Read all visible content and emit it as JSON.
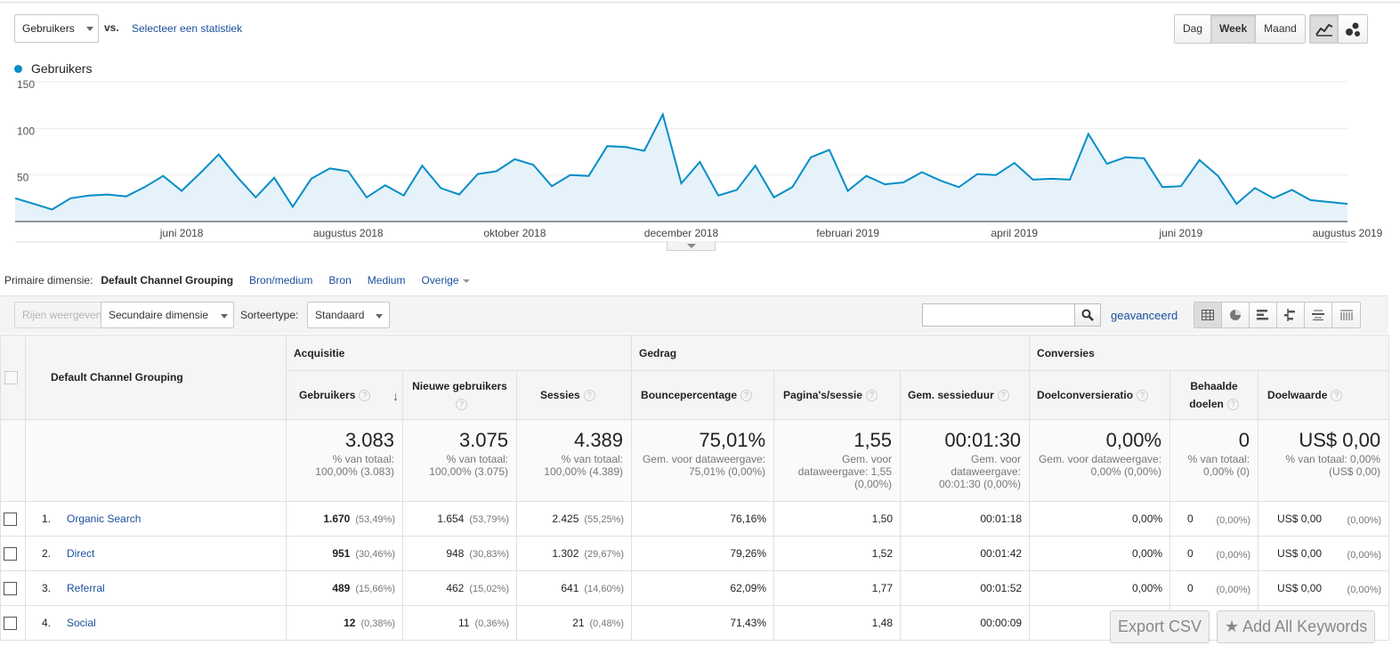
{
  "controls": {
    "metric_select": "Gebruikers",
    "vs": "vs.",
    "select_stat": "Selecteer een statistiek",
    "periods": [
      "Dag",
      "Week",
      "Maand"
    ],
    "active_period": "Week"
  },
  "chart_data": {
    "type": "area",
    "series": [
      {
        "name": "Gebruikers",
        "color": "#058dc7",
        "values": [
          25,
          19,
          13,
          25,
          28,
          29,
          27,
          37,
          49,
          33,
          52,
          72,
          48,
          26,
          47,
          16,
          46,
          57,
          54,
          26,
          39,
          28,
          60,
          36,
          29,
          51,
          54,
          67,
          61,
          38,
          50,
          49,
          81,
          80,
          76,
          115,
          41,
          64,
          28,
          34,
          60,
          26,
          37,
          69,
          77,
          33,
          49,
          40,
          42,
          53,
          44,
          37,
          51,
          50,
          63,
          45,
          46,
          45,
          94,
          62,
          69,
          68,
          37,
          38,
          66,
          49,
          19,
          36,
          25,
          34,
          23,
          21,
          19
        ]
      }
    ],
    "yticks": [
      50,
      100,
      150
    ],
    "ylim": [
      0,
      150
    ],
    "xtick_labels": [
      "juni 2018",
      "augustus 2018",
      "oktober 2018",
      "december 2018",
      "februari 2019",
      "april 2019",
      "juni 2019",
      "augustus 2019"
    ],
    "xtick_index": [
      9,
      18,
      27,
      36,
      45,
      54,
      63,
      72
    ],
    "grid": true
  },
  "primary": {
    "label": "Primaire dimensie:",
    "active": "Default Channel Grouping",
    "links": [
      "Bron/medium",
      "Bron",
      "Medium",
      "Overige"
    ]
  },
  "toolbar": {
    "show_rows": "Rijen weergeven",
    "secondary_dim": "Secundaire dimensie",
    "sort_label": "Sorteertype:",
    "sort_value": "Standaard",
    "advanced": "geavanceerd"
  },
  "table": {
    "dimension_header": "Default Channel Grouping",
    "groups": [
      "Acquisitie",
      "Gedrag",
      "Conversies"
    ],
    "columns": [
      "Gebruikers",
      "Nieuwe gebruikers",
      "Sessies",
      "Bouncepercentage",
      "Pagina's/sessie",
      "Gem. sessieduur",
      "Doelconversieratio",
      "Behaalde doelen",
      "Doelwaarde"
    ],
    "totals": [
      {
        "value": "3.083",
        "sub": "% van totaal: 100,00% (3.083)"
      },
      {
        "value": "3.075",
        "sub": "% van totaal: 100,00% (3.075)"
      },
      {
        "value": "4.389",
        "sub": "% van totaal: 100,00% (4.389)"
      },
      {
        "value": "75,01%",
        "sub": "Gem. voor dataweergave: 75,01% (0,00%)"
      },
      {
        "value": "1,55",
        "sub": "Gem. voor dataweergave: 1,55 (0,00%)"
      },
      {
        "value": "00:01:30",
        "sub": "Gem. voor dataweergave: 00:01:30 (0,00%)"
      },
      {
        "value": "0,00%",
        "sub": "Gem. voor dataweergave: 0,00% (0,00%)"
      },
      {
        "value": "0",
        "sub": "% van totaal: 0,00% (0)"
      },
      {
        "value": "US$ 0,00",
        "sub": "% van totaal: 0,00% (US$ 0,00)"
      }
    ],
    "rows": [
      {
        "idx": "1.",
        "name": "Organic Search",
        "users": "1.670",
        "users_pct": "(53,49%)",
        "new": "1.654",
        "new_pct": "(53,79%)",
        "sessions": "2.425",
        "sessions_pct": "(55,25%)",
        "bounce": "76,16%",
        "pages": "1,50",
        "duration": "00:01:18",
        "conv": "0,00%",
        "goals": "0",
        "goals_pct": "(0,00%)",
        "value": "US$ 0,00",
        "value_pct": "(0,00%)"
      },
      {
        "idx": "2.",
        "name": "Direct",
        "users": "951",
        "users_pct": "(30,46%)",
        "new": "948",
        "new_pct": "(30,83%)",
        "sessions": "1.302",
        "sessions_pct": "(29,67%)",
        "bounce": "79,26%",
        "pages": "1,52",
        "duration": "00:01:42",
        "conv": "0,00%",
        "goals": "0",
        "goals_pct": "(0,00%)",
        "value": "US$ 0,00",
        "value_pct": "(0,00%)"
      },
      {
        "idx": "3.",
        "name": "Referral",
        "users": "489",
        "users_pct": "(15,66%)",
        "new": "462",
        "new_pct": "(15,02%)",
        "sessions": "641",
        "sessions_pct": "(14,60%)",
        "bounce": "62,09%",
        "pages": "1,77",
        "duration": "00:01:52",
        "conv": "0,00%",
        "goals": "0",
        "goals_pct": "(0,00%)",
        "value": "US$ 0,00",
        "value_pct": "(0,00%)"
      },
      {
        "idx": "4.",
        "name": "Social",
        "users": "12",
        "users_pct": "(0,38%)",
        "new": "11",
        "new_pct": "(0,36%)",
        "sessions": "21",
        "sessions_pct": "(0,48%)",
        "bounce": "71,43%",
        "pages": "1,48",
        "duration": "00:00:09",
        "conv": "",
        "goals": "",
        "goals_pct": "",
        "value": "",
        "value_pct": ""
      }
    ]
  },
  "overlay": {
    "export_csv": "Export CSV",
    "add_keywords": "Add All Keywords"
  }
}
